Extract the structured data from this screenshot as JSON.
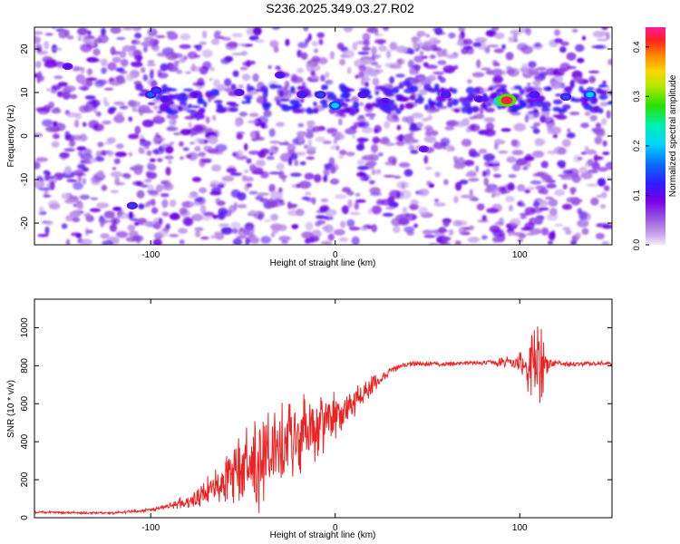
{
  "title": "S236.2025.349.03.27.R02",
  "chart_data": [
    {
      "type": "heatmap",
      "xlabel": "Height of straight line (km)",
      "ylabel": "Frequency (Hz)",
      "xlim": [
        -163,
        150
      ],
      "ylim": [
        -25,
        25
      ],
      "xticks": [
        -100,
        0,
        100
      ],
      "xtick_labels": [
        "-100",
        "0",
        "100"
      ],
      "yticks": [
        -20,
        -10,
        0,
        10,
        20
      ],
      "ytick_labels": [
        "-20",
        "-10",
        "0",
        "10",
        "20"
      ],
      "colorbar": {
        "label": "Normalized spectral amplitude",
        "range": [
          0,
          0.44
        ],
        "ticks": [
          0.0,
          0.1,
          0.2,
          0.3,
          0.4
        ],
        "tick_labels": [
          "0.0",
          "0.1",
          "0.2",
          "0.3",
          "0.4"
        ]
      },
      "features": {
        "band_frequency_hz": 8.5,
        "band_start_km": -107,
        "peak_points": [
          {
            "x_km": -100,
            "f_hz": 9.5,
            "amp": 0.16
          },
          {
            "x_km": -97,
            "f_hz": 10.5,
            "amp": 0.14
          },
          {
            "x_km": -92,
            "f_hz": 8.5,
            "amp": 0.12
          },
          {
            "x_km": -76,
            "f_hz": 9.5,
            "amp": 0.11
          },
          {
            "x_km": -52,
            "f_hz": 10,
            "amp": 0.12
          },
          {
            "x_km": -30,
            "f_hz": 14,
            "amp": 0.12
          },
          {
            "x_km": -18,
            "f_hz": 9.5,
            "amp": 0.13
          },
          {
            "x_km": -8,
            "f_hz": 9.5,
            "amp": 0.15
          },
          {
            "x_km": 0,
            "f_hz": 7,
            "amp": 0.2
          },
          {
            "x_km": 15,
            "f_hz": 9.5,
            "amp": 0.13
          },
          {
            "x_km": 27,
            "f_hz": 8,
            "amp": 0.12
          },
          {
            "x_km": 48,
            "f_hz": -3,
            "amp": 0.11
          },
          {
            "x_km": 60,
            "f_hz": 9.5,
            "amp": 0.13
          },
          {
            "x_km": 78,
            "f_hz": 8.5,
            "amp": 0.12
          },
          {
            "x_km": 90,
            "f_hz": 8,
            "amp": 0.3
          },
          {
            "x_km": 93,
            "f_hz": 8.2,
            "amp": 0.42
          },
          {
            "x_km": 108,
            "f_hz": 9.5,
            "amp": 0.13
          },
          {
            "x_km": 125,
            "f_hz": 9,
            "amp": 0.15
          },
          {
            "x_km": 138,
            "f_hz": 9.5,
            "amp": 0.2
          },
          {
            "x_km": -145,
            "f_hz": 16,
            "amp": 0.12
          },
          {
            "x_km": -110,
            "f_hz": -16,
            "amp": 0.14
          }
        ]
      }
    },
    {
      "type": "line",
      "xlabel": "Height of straight line (km)",
      "ylabel": "SNR (10 * v/v)",
      "xlim": [
        -163,
        150
      ],
      "ylim": [
        0,
        1150
      ],
      "xticks": [
        -100,
        0,
        100
      ],
      "xtick_labels": [
        "-100",
        "0",
        "100"
      ],
      "yticks": [
        0,
        200,
        400,
        600,
        800,
        1000
      ],
      "ytick_labels": [
        "0",
        "200",
        "400",
        "600",
        "800",
        "1000"
      ],
      "series": [
        {
          "name": "SNR",
          "color": "#ee2222",
          "x": [
            -163,
            -140,
            -120,
            -100,
            -90,
            -80,
            -70,
            -60,
            -50,
            -40,
            -30,
            -20,
            -10,
            0,
            10,
            20,
            30,
            40,
            60,
            80,
            90,
            100,
            105,
            110,
            115,
            120,
            130,
            150
          ],
          "y": [
            30,
            25,
            25,
            40,
            60,
            80,
            130,
            190,
            250,
            310,
            370,
            430,
            490,
            520,
            600,
            700,
            780,
            810,
            810,
            815,
            820,
            820,
            810,
            800,
            810,
            810,
            810,
            810
          ],
          "noise_amplitude": [
            8,
            8,
            8,
            10,
            20,
            45,
            90,
            150,
            240,
            290,
            300,
            250,
            220,
            150,
            100,
            60,
            25,
            15,
            15,
            15,
            30,
            60,
            180,
            300,
            60,
            20,
            15,
            15
          ]
        }
      ]
    }
  ]
}
